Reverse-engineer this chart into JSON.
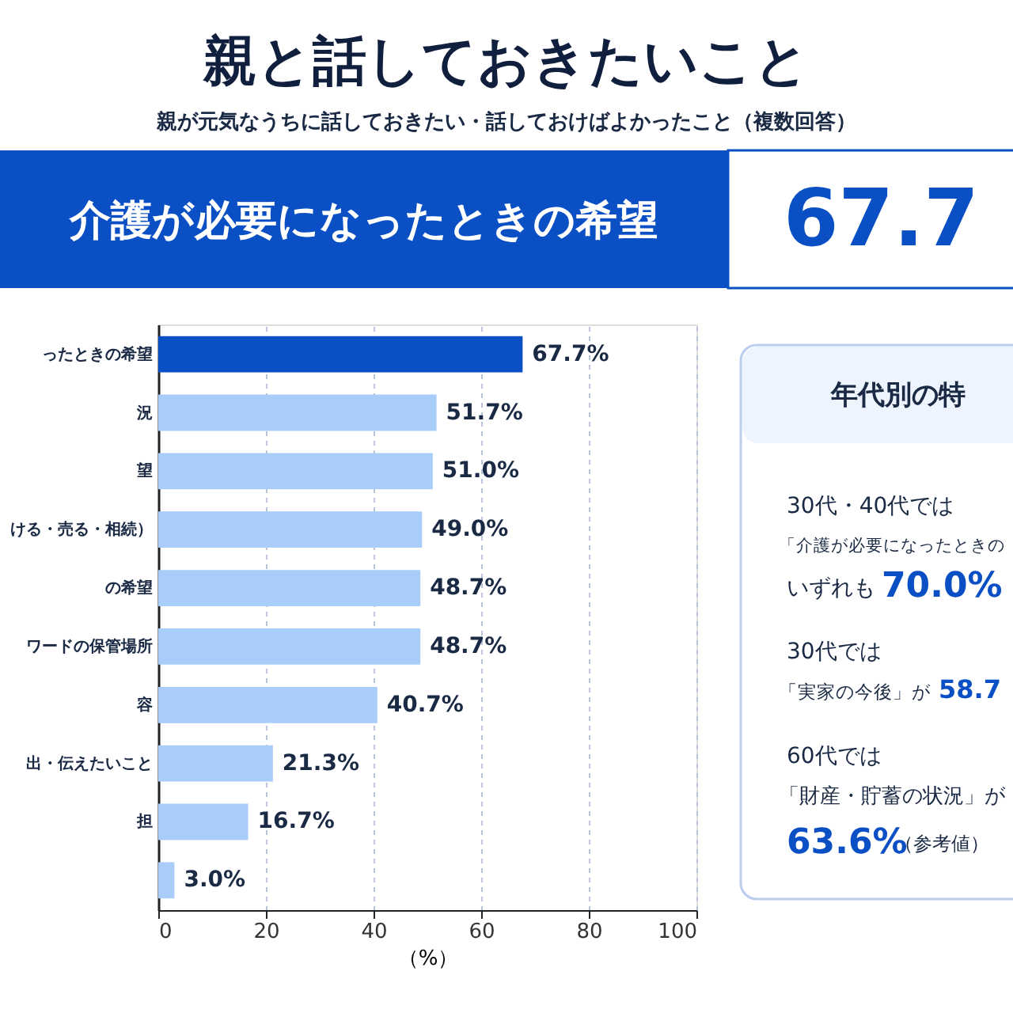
{
  "chart_data": {
    "type": "bar",
    "orientation": "horizontal",
    "title": "親と話しておきたいこと",
    "subtitle": "親が元気なうちに話しておきたい・話しておけばよかったこと（複数回答）",
    "categories": [
      "ったときの希望",
      "況",
      "望",
      "ける・売る・相続）",
      "の希望",
      "ワードの保管場所",
      "容",
      "出・伝えたいこと",
      "担",
      null
    ],
    "values": [
      67.7,
      51.7,
      51.0,
      49.0,
      48.7,
      48.7,
      40.7,
      21.3,
      16.7,
      3.0
    ],
    "colors": [
      "#0a4fc4",
      "#a8cdf8",
      "#a8cdf8",
      "#a8cdf8",
      "#a8cdf8",
      "#a8cdf8",
      "#a8cdf8",
      "#a8cdf8",
      "#a8cdf8",
      "#a8cdf8"
    ],
    "value_labels": [
      "67.7%",
      "51.7%",
      "51.0%",
      "49.0%",
      "48.7%",
      "48.7%",
      "40.7%",
      "21.3%",
      "16.7%",
      "3.0%"
    ],
    "xlim": [
      0,
      100
    ],
    "xticks": [
      0,
      20,
      40,
      60,
      80,
      100
    ],
    "xlabel": "（%）",
    "grid": "x",
    "annotations": [
      "介護が必要になったときの希望",
      "67.7",
      "年代別の特",
      "30代・40代では",
      "「介護が必要になったときの",
      "いずれも",
      "70.0%",
      "30代では",
      "「実家の今後」が",
      "58.7",
      "60代では",
      "「財産・貯蓄の状況」が",
      "63.6%",
      "（参考値）"
    ]
  }
}
